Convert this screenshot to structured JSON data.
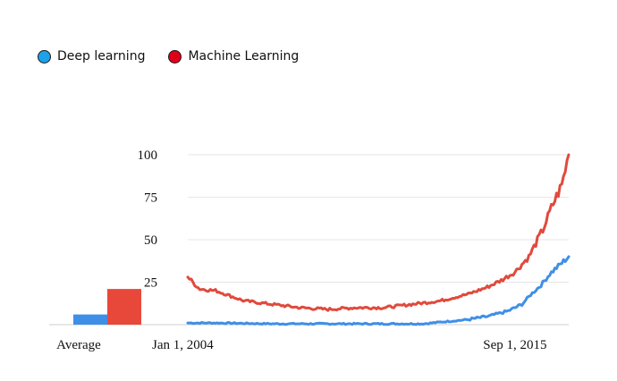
{
  "legend": [
    {
      "label": "Deep learning",
      "color": "#1da1e8"
    },
    {
      "label": "Machine Learning",
      "color": "#e0001a"
    }
  ],
  "chart_data": {
    "type": "line",
    "ylim": [
      0,
      100
    ],
    "yticks": [
      {
        "value": 100,
        "label": "100"
      },
      {
        "value": 75,
        "label": "75"
      },
      {
        "value": 50,
        "label": "50"
      },
      {
        "value": 25,
        "label": "25"
      }
    ],
    "x_range": [
      "2004-01",
      "2017-08"
    ],
    "x_tick_labels": [
      {
        "date": "2004-01",
        "label": "Jan 1, 2004"
      },
      {
        "date": "2015-09",
        "label": "Sep 1, 2015"
      }
    ],
    "average": {
      "label": "Average",
      "bars": [
        {
          "series": "Deep learning",
          "value": 6,
          "color": "#3f8fe6"
        },
        {
          "series": "Machine Learning",
          "value": 21,
          "color": "#e8483a"
        }
      ]
    },
    "series": [
      {
        "name": "Deep learning",
        "color": "#3f8fe6",
        "points": [
          {
            "x": "2004-01",
            "y": 1
          },
          {
            "x": "2005-01",
            "y": 1
          },
          {
            "x": "2007-01",
            "y": 0.5
          },
          {
            "x": "2009-01",
            "y": 0.5
          },
          {
            "x": "2011-01",
            "y": 0.5
          },
          {
            "x": "2012-06",
            "y": 0.5
          },
          {
            "x": "2013-01",
            "y": 1.5
          },
          {
            "x": "2014-01",
            "y": 3
          },
          {
            "x": "2014-10",
            "y": 5
          },
          {
            "x": "2015-06",
            "y": 8
          },
          {
            "x": "2015-12",
            "y": 12
          },
          {
            "x": "2016-04",
            "y": 18
          },
          {
            "x": "2016-08",
            "y": 23
          },
          {
            "x": "2016-12",
            "y": 30
          },
          {
            "x": "2017-04",
            "y": 35
          },
          {
            "x": "2017-08",
            "y": 40
          }
        ]
      },
      {
        "name": "Machine Learning",
        "color": "#e04a3c",
        "points": [
          {
            "x": "2004-01",
            "y": 28
          },
          {
            "x": "2004-06",
            "y": 21
          },
          {
            "x": "2005-01",
            "y": 20
          },
          {
            "x": "2006-01",
            "y": 14
          },
          {
            "x": "2007-01",
            "y": 12
          },
          {
            "x": "2008-01",
            "y": 10
          },
          {
            "x": "2009-01",
            "y": 9
          },
          {
            "x": "2010-01",
            "y": 10
          },
          {
            "x": "2011-01",
            "y": 10
          },
          {
            "x": "2012-01",
            "y": 12
          },
          {
            "x": "2013-01",
            "y": 14
          },
          {
            "x": "2014-01",
            "y": 18
          },
          {
            "x": "2014-09",
            "y": 22
          },
          {
            "x": "2015-03",
            "y": 26
          },
          {
            "x": "2015-09",
            "y": 31
          },
          {
            "x": "2016-03",
            "y": 40
          },
          {
            "x": "2016-09",
            "y": 56
          },
          {
            "x": "2017-01",
            "y": 70
          },
          {
            "x": "2017-05",
            "y": 82
          },
          {
            "x": "2017-08",
            "y": 100
          }
        ]
      }
    ]
  }
}
